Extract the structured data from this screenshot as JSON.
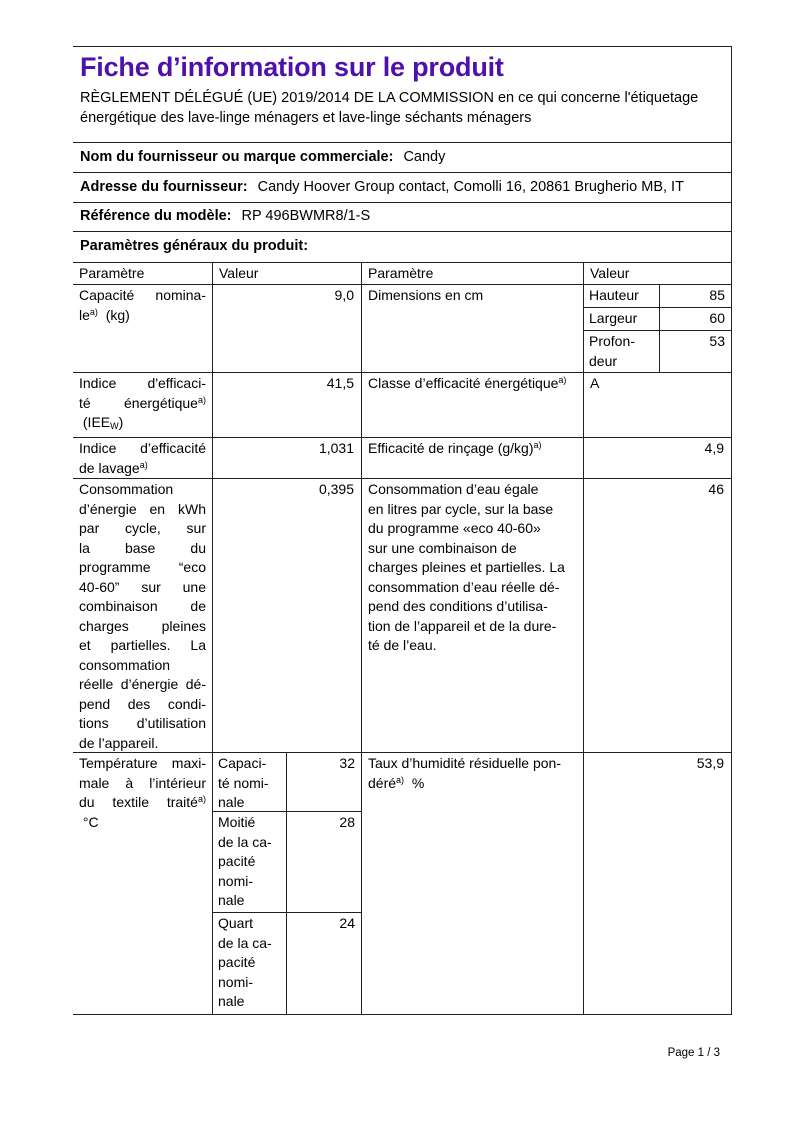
{
  "colors": {
    "title": "#5010aa",
    "border": "#222222"
  },
  "header": {
    "title": "Fiche d’information sur le produit",
    "regulation_lines": [
      {
        "s": [
          {
            "v": "RÈGLEMENT DÉLÉGUÉ (UE) 2019/2014 DE LA COMMISSION en ce qui concerne l'étiquetage"
          }
        ]
      },
      {
        "s": [
          {
            "v": "énergétique des lave-linge ménagers et lave-linge séchants ménagers"
          }
        ]
      }
    ]
  },
  "info_rows": [
    {
      "label": "Nom du fournisseur ou marque commerciale:",
      "value": "Candy"
    },
    {
      "label": "Adresse du fournisseur:",
      "value": "Candy Hoover Group contact, Comolli 16, 20861 Brugherio MB, IT"
    },
    {
      "label": "Référence du modèle:",
      "value": "RP 496BWMR8/1-S"
    }
  ],
  "section_title": "Paramètres généraux du produit:",
  "table": {
    "col_headers": [
      "Paramètre",
      "Valeur",
      "Paramètre",
      "Valeur"
    ],
    "rows": {
      "capacity": {
        "param": [
          {
            "j": true,
            "s": [
              {
                "v": "Capacité nomina-"
              }
            ]
          },
          {
            "s": [
              {
                "v": "le"
              },
              {
                "k": "sup",
                "v": "a)"
              },
              {
                "v": "  (kg)"
              }
            ]
          }
        ],
        "value": "9,0",
        "param2": [
          {
            "s": [
              {
                "v": "Dimensions en cm"
              }
            ]
          }
        ],
        "dims": [
          {
            "label": [
              {
                "s": [
                  {
                    "v": "Hauteur"
                  }
                ]
              }
            ],
            "value": "85"
          },
          {
            "label": [
              {
                "s": [
                  {
                    "v": "Largeur"
                  }
                ]
              }
            ],
            "value": "60"
          },
          {
            "label": [
              {
                "s": [
                  {
                    "v": "Profon-"
                  }
                ]
              },
              {
                "s": [
                  {
                    "v": "deur"
                  }
                ]
              }
            ],
            "value": "53"
          }
        ]
      },
      "energy_index": {
        "param": [
          {
            "j": true,
            "s": [
              {
                "v": "Indice d'efficaci-"
              }
            ]
          },
          {
            "j": true,
            "s": [
              {
                "v": "té énergétique"
              },
              {
                "k": "sup",
                "v": "a)"
              }
            ]
          },
          {
            "s": [
              {
                "v": " (IEE"
              },
              {
                "k": "sub",
                "v": "W"
              },
              {
                "v": ")"
              }
            ]
          }
        ],
        "value": "41,5",
        "param2": [
          {
            "s": [
              {
                "v": "Classe d’efficacité énergétique"
              },
              {
                "k": "sup",
                "v": "a)"
              }
            ]
          }
        ],
        "value2": "A"
      },
      "washing_index": {
        "param": [
          {
            "j": true,
            "s": [
              {
                "v": "Indice d’efficacité"
              }
            ]
          },
          {
            "s": [
              {
                "v": "de lavage"
              },
              {
                "k": "sup",
                "v": "a)"
              }
            ]
          }
        ],
        "value": "1,031",
        "param2": [
          {
            "s": [
              {
                "v": "Efficacité de rinçage (g/kg)"
              },
              {
                "k": "sup",
                "v": "a)"
              }
            ]
          }
        ],
        "value2": "4,9"
      },
      "energy_consumption": {
        "param": [
          {
            "j": true,
            "s": [
              {
                "v": "Consommation"
              }
            ]
          },
          {
            "j": true,
            "s": [
              {
                "v": "d’énergie en kWh"
              }
            ]
          },
          {
            "j": true,
            "s": [
              {
                "v": "par cycle, sur"
              }
            ]
          },
          {
            "j": true,
            "s": [
              {
                "v": "la base du"
              }
            ]
          },
          {
            "j": true,
            "s": [
              {
                "v": "programme “eco"
              }
            ]
          },
          {
            "j": true,
            "s": [
              {
                "v": "40-60” sur une"
              }
            ]
          },
          {
            "j": true,
            "s": [
              {
                "v": "combinaison de"
              }
            ]
          },
          {
            "j": true,
            "s": [
              {
                "v": "charges pleines"
              }
            ]
          },
          {
            "j": true,
            "s": [
              {
                "v": "et partielles. La"
              }
            ]
          },
          {
            "j": true,
            "s": [
              {
                "v": "consommation"
              }
            ]
          },
          {
            "j": true,
            "s": [
              {
                "v": "réelle d’énergie dé-"
              }
            ]
          },
          {
            "j": true,
            "s": [
              {
                "v": "pend des condi-"
              }
            ]
          },
          {
            "j": true,
            "s": [
              {
                "v": "tions d’utilisation"
              }
            ]
          },
          {
            "s": [
              {
                "v": "de l’appareil."
              }
            ]
          }
        ],
        "value": "0,395",
        "param2": [
          {
            "s": [
              {
                "v": "Consommation d’eau égale"
              }
            ]
          },
          {
            "s": [
              {
                "v": "en litres par cycle, sur la base"
              }
            ]
          },
          {
            "s": [
              {
                "v": "du programme «eco 40-60»"
              }
            ]
          },
          {
            "s": [
              {
                "v": "sur une combinaison de"
              }
            ]
          },
          {
            "s": [
              {
                "v": "charges pleines et partielles. La"
              }
            ]
          },
          {
            "s": [
              {
                "v": "consommation d’eau réelle dé-"
              }
            ]
          },
          {
            "s": [
              {
                "v": "pend des conditions d’utilisa-"
              }
            ]
          },
          {
            "s": [
              {
                "v": "tion de l’appareil et de la dure-"
              }
            ]
          },
          {
            "s": [
              {
                "v": "té de l’eau."
              }
            ]
          }
        ],
        "value2": "46"
      },
      "max_temperature": {
        "param": [
          {
            "j": true,
            "s": [
              {
                "v": "Température maxi-"
              }
            ]
          },
          {
            "j": true,
            "s": [
              {
                "v": "male à l’intérieur"
              }
            ]
          },
          {
            "j": true,
            "s": [
              {
                "v": "du textile traité"
              },
              {
                "k": "sup",
                "v": "a)"
              }
            ]
          },
          {
            "s": [
              {
                "v": " °C"
              }
            ]
          }
        ],
        "caps": [
          {
            "label": [
              {
                "s": [
                  {
                    "v": "Capaci-"
                  }
                ]
              },
              {
                "s": [
                  {
                    "v": "té nomi-"
                  }
                ]
              },
              {
                "s": [
                  {
                    "v": "nale"
                  }
                ]
              }
            ],
            "value": "32"
          },
          {
            "label": [
              {
                "s": [
                  {
                    "v": "Moitié"
                  }
                ]
              },
              {
                "s": [
                  {
                    "v": "de la ca-"
                  }
                ]
              },
              {
                "s": [
                  {
                    "v": "pacité"
                  }
                ]
              },
              {
                "s": [
                  {
                    "v": "nomi-"
                  }
                ]
              },
              {
                "s": [
                  {
                    "v": "nale"
                  }
                ]
              }
            ],
            "value": "28"
          },
          {
            "label": [
              {
                "s": [
                  {
                    "v": "Quart"
                  }
                ]
              },
              {
                "s": [
                  {
                    "v": "de la ca-"
                  }
                ]
              },
              {
                "s": [
                  {
                    "v": "pacité"
                  }
                ]
              },
              {
                "s": [
                  {
                    "v": "nomi-"
                  }
                ]
              },
              {
                "s": [
                  {
                    "v": "nale"
                  }
                ]
              }
            ],
            "value": "24"
          }
        ],
        "param2": [
          {
            "s": [
              {
                "v": "Taux d’humidité résiduelle pon-"
              }
            ]
          },
          {
            "s": [
              {
                "v": "déré"
              },
              {
                "k": "sup",
                "v": "a)"
              },
              {
                "v": "  %"
              }
            ]
          }
        ],
        "value2": "53,9"
      }
    }
  },
  "footer": {
    "page": "Page 1 / 3"
  }
}
